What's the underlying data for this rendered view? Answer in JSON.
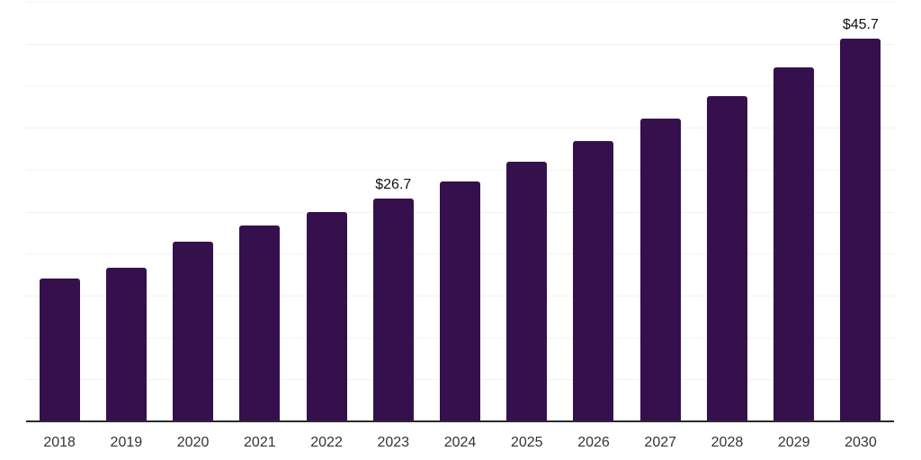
{
  "chart_data": {
    "type": "bar",
    "categories": [
      "2018",
      "2019",
      "2020",
      "2021",
      "2022",
      "2023",
      "2024",
      "2025",
      "2026",
      "2027",
      "2028",
      "2029",
      "2030"
    ],
    "values": [
      17.1,
      18.4,
      21.5,
      23.4,
      25.1,
      26.7,
      28.7,
      31.1,
      33.5,
      36.2,
      38.9,
      42.3,
      45.7
    ],
    "labeled_points": {
      "2023": "$26.7",
      "2030": "$45.7"
    },
    "title": "",
    "xlabel": "",
    "ylabel": "",
    "ylim": [
      0,
      50
    ],
    "gridline_step": 5,
    "grid": true,
    "legend": false,
    "y_tick_labels_shown": false,
    "colors": {
      "bar": "#36104D",
      "axis_line": "#2a2a2a",
      "gridline": "#f2f2f2",
      "value_label": "#111111",
      "tick_label": "#333333",
      "background": "#ffffff"
    }
  }
}
